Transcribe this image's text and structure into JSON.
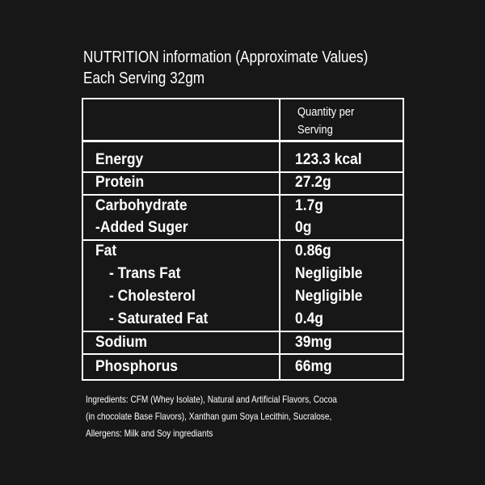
{
  "heading": {
    "line1": "NUTRITION information (Approximate Values)",
    "line2": "Each Serving 32gm"
  },
  "table": {
    "column_header": [
      "Quantity per",
      "Serving"
    ],
    "rows": [
      {
        "name": "Energy",
        "value": "123.3 kcal"
      },
      {
        "name": "Protein",
        "value": "27.2g"
      },
      {
        "name": "Carbohydrate",
        "value": "1.7g"
      },
      {
        "name": "-Added Suger",
        "value": "0g"
      },
      {
        "name": "Fat",
        "value": "0.86g"
      },
      {
        "name": "- Trans Fat",
        "value": "Negligible"
      },
      {
        "name": "- Cholesterol",
        "value": "Negligible"
      },
      {
        "name": "- Saturated Fat",
        "value": "0.4g"
      },
      {
        "name": "Sodium",
        "value": "39mg"
      },
      {
        "name": "Phosphorus",
        "value": "66mg"
      }
    ]
  },
  "ingredients": {
    "line1": "Ingredients:  CFM (Whey Isolate), Natural and Artificial Flavors, Cocoa",
    "line2": "(in chocolate Base Flavors), Xanthan gum Soya Lecithin, Sucralose,",
    "line3": "Allergens: Milk and Soy ingrediants"
  },
  "colors": {
    "background": "#171717",
    "foreground": "#ffffff"
  }
}
